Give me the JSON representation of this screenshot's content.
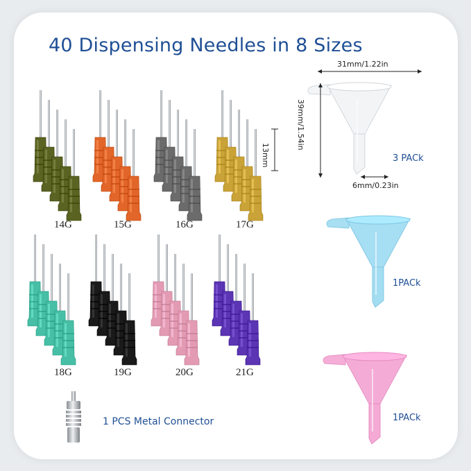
{
  "title": "40 Dispensing Needles in 8 Sizes",
  "needle_groups": [
    {
      "gauge": "14G",
      "color": "#5a6322"
    },
    {
      "gauge": "15G",
      "color": "#e2662a"
    },
    {
      "gauge": "16G",
      "color": "#6b6b6b"
    },
    {
      "gauge": "17G",
      "color": "#c9a338"
    },
    {
      "gauge": "18G",
      "color": "#46bfa6"
    },
    {
      "gauge": "19G",
      "color": "#1a1a1a"
    },
    {
      "gauge": "20G",
      "color": "#e39bb3"
    },
    {
      "gauge": "21G",
      "color": "#5b35b3"
    }
  ],
  "hub_length_label": "13mm",
  "funnels": [
    {
      "label": "3 PACk",
      "color": "#f2f4f6"
    },
    {
      "label": "1PACk",
      "color": "#9fdcf2"
    },
    {
      "label": "1PACk",
      "color": "#f4a6d3"
    }
  ],
  "dimensions": {
    "width": "31mm/1.22in",
    "height": "39mm/1.54in",
    "spout": "6mm/0.23in"
  },
  "connector_label": "1 PCS Metal Connector"
}
